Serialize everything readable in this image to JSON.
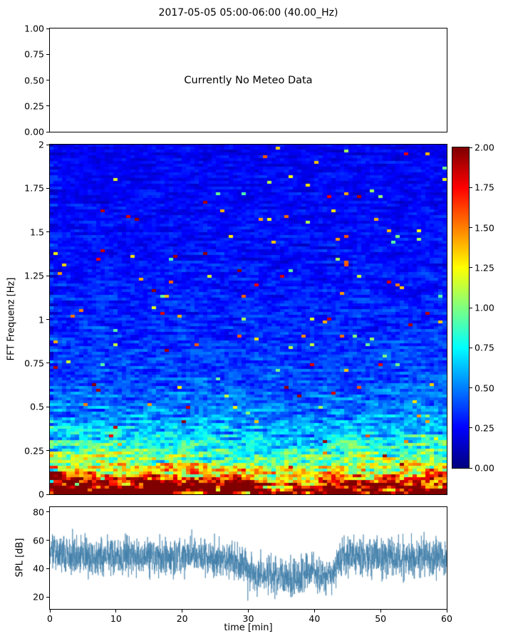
{
  "figure": {
    "title": "2017-05-05 05:00-06:00 (40.00_Hz)",
    "background": "#ffffff"
  },
  "chart_data": [
    {
      "id": "meteo_panel",
      "type": "text-panel",
      "message": "Currently No Meteo Data",
      "ylim": [
        0,
        1
      ],
      "yticks": [
        {
          "v": 1.0,
          "label": "1.00"
        },
        {
          "v": 0.75,
          "label": "0.75"
        },
        {
          "v": 0.5,
          "label": "0.50"
        },
        {
          "v": 0.25,
          "label": "0.25"
        },
        {
          "v": 0.0,
          "label": "0.00"
        }
      ],
      "grid": false
    },
    {
      "id": "spectrogram",
      "type": "heatmap",
      "ylabel": "FFT Frequenz [Hz]",
      "ylim": [
        0,
        2
      ],
      "xlim": [
        0,
        60
      ],
      "yticks": [
        {
          "v": 2,
          "label": "2"
        },
        {
          "v": 1.75,
          "label": "1.75"
        },
        {
          "v": 1.5,
          "label": "1.5"
        },
        {
          "v": 1.25,
          "label": "1.25"
        },
        {
          "v": 1,
          "label": "1"
        },
        {
          "v": 0.75,
          "label": "0.75"
        },
        {
          "v": 0.5,
          "label": "0.5"
        },
        {
          "v": 0.25,
          "label": "0.25"
        },
        {
          "v": 0,
          "label": "0"
        }
      ],
      "colormap": "jet",
      "colorbar": {
        "vmin": 0,
        "vmax": 2,
        "ticks": [
          {
            "v": 2,
            "label": "2.00"
          },
          {
            "v": 1.75,
            "label": "1.75"
          },
          {
            "v": 1.5,
            "label": "1.50"
          },
          {
            "v": 1.25,
            "label": "1.25"
          },
          {
            "v": 1,
            "label": "1.00"
          },
          {
            "v": 0.75,
            "label": "0.75"
          },
          {
            "v": 0.5,
            "label": "0.50"
          },
          {
            "v": 0.25,
            "label": "0.25"
          },
          {
            "v": 0,
            "label": "0.00"
          }
        ]
      },
      "description": "Broadband noise spectrogram: high spectral energy (dark red, ~2.0) below about 0.25 Hz, decaying through yellow/green/cyan to low energy (dark blue, ~0.1-0.3) toward 2 Hz; horizontal streaky noise texture over 0-60 min; slight energy dip around 30-42 min",
      "generation": {
        "seed": 1234,
        "rows": 123,
        "cols": 93,
        "mean_floor": 0.17,
        "mean_amp": 1.9,
        "mean_decay": 0.17,
        "mean_amp2": 0.35,
        "mean_decay2": 1.2,
        "mult_min": 0.35,
        "mult_rand": 1.25,
        "smooth": 0.55,
        "speck_prob": 0.013,
        "hot_prob": 0.004
      }
    },
    {
      "id": "spl_timeseries",
      "type": "line",
      "ylabel": "SPL [dB]",
      "xlabel": "time [min]",
      "xlim": [
        0,
        60
      ],
      "ylim": [
        11.5,
        83.5
      ],
      "yticks": [
        80,
        60,
        40,
        20
      ],
      "xticks": [
        0,
        10,
        20,
        30,
        40,
        50,
        60
      ],
      "line_color": "#3d7ca8",
      "series": [
        {
          "name": "SPL",
          "anchors_t_min": [
            0,
            2,
            5,
            8,
            12,
            16,
            20,
            24,
            27,
            29,
            31,
            33,
            35,
            37,
            39,
            40,
            41,
            42,
            43,
            44,
            45,
            46,
            48,
            50,
            52,
            54,
            56,
            58,
            60
          ],
          "anchors_db": [
            52,
            50,
            49,
            48,
            49,
            48,
            49,
            48,
            47,
            42,
            37,
            35,
            34,
            33,
            38,
            37,
            35,
            34,
            38,
            46,
            50,
            49,
            47,
            48,
            47,
            48,
            47,
            48,
            48
          ]
        }
      ],
      "generation": {
        "seed": 99,
        "points": 2800,
        "noise_std": 6.5,
        "spike_prob": 0.02,
        "spike_amp": 10
      }
    }
  ]
}
